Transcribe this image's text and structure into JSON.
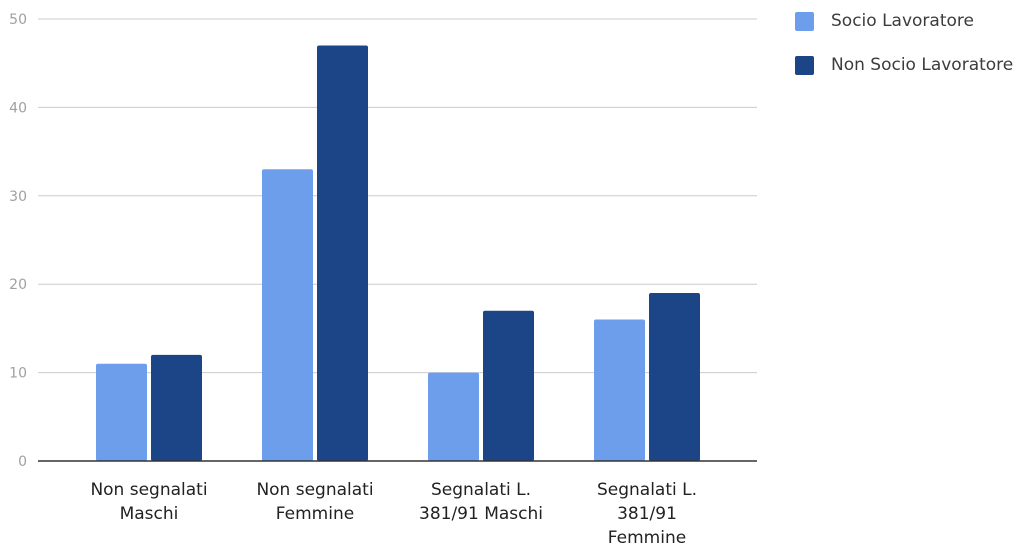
{
  "chart_data": {
    "type": "bar",
    "title": "",
    "xlabel": "",
    "ylabel": "",
    "ylim": [
      0,
      50
    ],
    "yticks": [
      0,
      10,
      20,
      30,
      40,
      50
    ],
    "grid": true,
    "legend_position": "top-right",
    "categories": [
      [
        "Non segnalati",
        "Maschi"
      ],
      [
        "Non segnalati",
        "Femmine"
      ],
      [
        "Segnalati L.",
        "381/91 Maschi"
      ],
      [
        "Segnalati L.",
        "381/91",
        "Femmine"
      ]
    ],
    "series": [
      {
        "name": "Socio Lavoratore",
        "color": "#6d9eeb",
        "values": [
          11,
          33,
          10,
          16
        ]
      },
      {
        "name": "Non Socio Lavoratore",
        "color": "#1c4587",
        "values": [
          12,
          47,
          17,
          19
        ]
      }
    ],
    "colors": {
      "grid": "#cccccc",
      "axis": "#333333",
      "tick_label": "#a0a0a0",
      "category_label": "#222222",
      "legend_text": "#3c3c3c"
    }
  }
}
